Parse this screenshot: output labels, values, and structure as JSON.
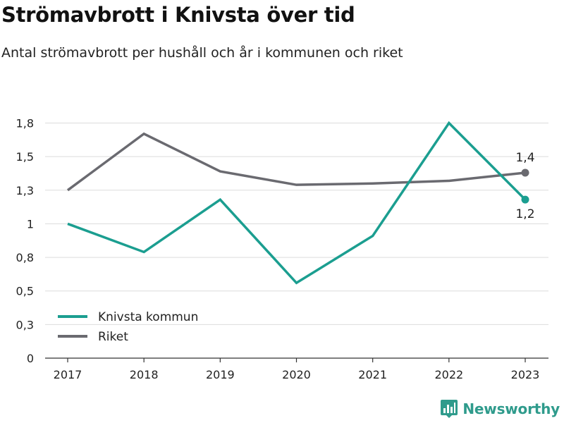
{
  "title": "Strömavbrott i Knivsta över tid",
  "subtitle": "Antal strömavbrott per hushåll och år i kommunen och riket",
  "brand": {
    "name": "Newsworthy",
    "icon": "newsworthy-logo-icon",
    "color": "#2f9b8c"
  },
  "chart_data": {
    "type": "line",
    "x": [
      "2017",
      "2018",
      "2019",
      "2020",
      "2021",
      "2022",
      "2023"
    ],
    "ylim": [
      0,
      1.8
    ],
    "yticks": [
      0,
      0.25,
      0.5,
      0.75,
      1.0,
      1.25,
      1.5,
      1.75
    ],
    "ytick_labels": [
      "0",
      "0,3",
      "0,5",
      "0,8",
      "1",
      "1,3",
      "1,5",
      "1,8"
    ],
    "grid": true,
    "legend_placement": "bottom-left",
    "series": [
      {
        "name": "Knivsta kommun",
        "color": "#1b9e90",
        "values": [
          1.0,
          0.79,
          1.18,
          0.56,
          0.91,
          1.75,
          1.18
        ],
        "end_label": "1,2",
        "end_label_position": "below"
      },
      {
        "name": "Riket",
        "color": "#6a6a70",
        "values": [
          1.25,
          1.67,
          1.39,
          1.29,
          1.3,
          1.32,
          1.38
        ],
        "end_label": "1,4",
        "end_label_position": "above"
      }
    ]
  }
}
